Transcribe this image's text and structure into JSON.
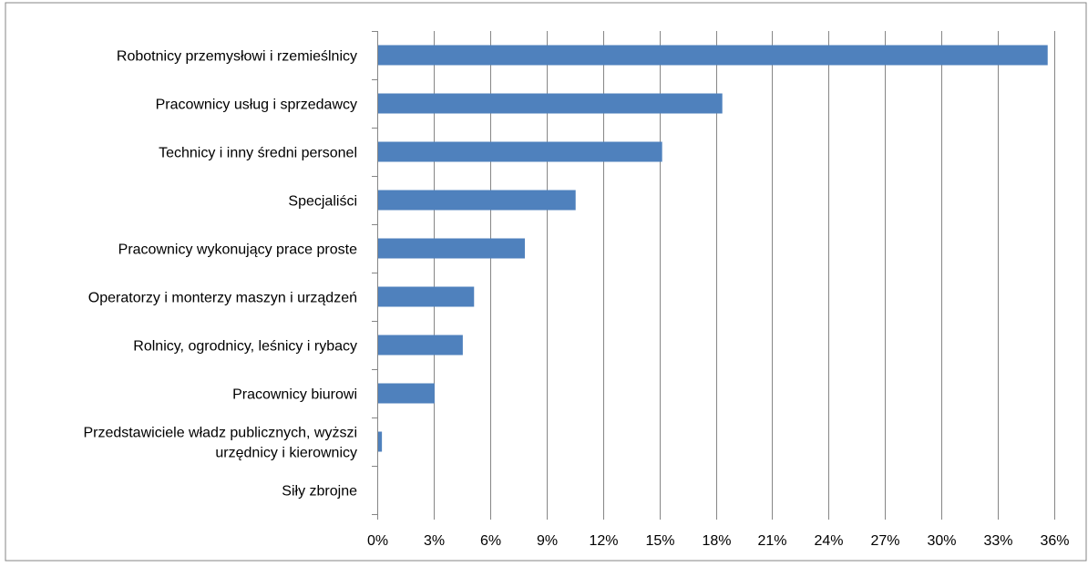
{
  "chart_data": {
    "type": "bar",
    "orientation": "horizontal",
    "title": "",
    "xlabel": "",
    "ylabel": "",
    "categories": [
      "Robotnicy przemysłowi i rzemieślnicy",
      "Pracownicy usług i sprzedawcy",
      "Technicy i inny średni personel",
      "Specjaliści",
      "Pracownicy wykonujący prace proste",
      "Operatorzy i monterzy maszyn i urządzeń",
      "Rolnicy, ogrodnicy, leśnicy i rybacy",
      "Pracownicy biurowi",
      "Przedstawiciele władz publicznych, wyższi urzędnicy i kierownicy",
      "Siły zbrojne"
    ],
    "category_label_lines": [
      [
        "Robotnicy przemysłowi i rzemieślnicy"
      ],
      [
        "Pracownicy usług i sprzedawcy"
      ],
      [
        "Technicy i inny średni personel"
      ],
      [
        "Specjaliści"
      ],
      [
        "Pracownicy wykonujący prace proste"
      ],
      [
        "Operatorzy i monterzy maszyn i urządzeń"
      ],
      [
        "Rolnicy, ogrodnicy, leśnicy i rybacy"
      ],
      [
        "Pracownicy biurowi"
      ],
      [
        "Przedstawiciele władz publicznych, wyższi",
        "urzędnicy i kierownicy"
      ],
      [
        "Siły zbrojne"
      ]
    ],
    "values": [
      35.6,
      18.3,
      15.1,
      10.5,
      7.8,
      5.1,
      4.5,
      3.0,
      0.2,
      0.0
    ],
    "value_unit": "%",
    "xlim": [
      0,
      36
    ],
    "xticks": [
      "0%",
      "3%",
      "6%",
      "9%",
      "12%",
      "15%",
      "18%",
      "21%",
      "24%",
      "27%",
      "30%",
      "33%",
      "36%"
    ],
    "grid": true,
    "legend": "none",
    "bar_color": "#4f81bd",
    "grid_color": "#868686"
  }
}
